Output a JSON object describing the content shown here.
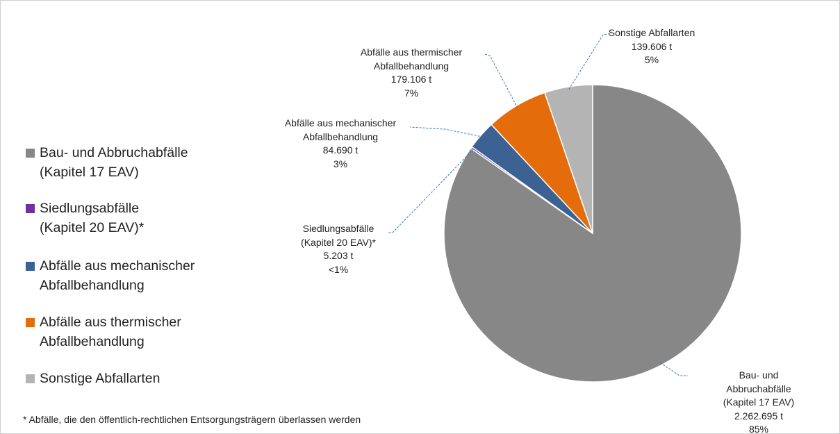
{
  "chart_data": {
    "type": "pie",
    "categories": [
      "Bau- und Abbruchabfälle\n(Kapitel 17 EAV)",
      "Siedlungsabfälle\n(Kapitel 20 EAV)*",
      "Abfälle aus mechanischer\nAbfallbehandlung",
      "Abfälle aus thermischer\nAbfallbehandlung",
      "Sonstige Abfallarten"
    ],
    "values": [
      2262695,
      5203,
      84690,
      179106,
      139606
    ],
    "value_labels": [
      "2.262.695 t",
      "5.203 t",
      "84.690 t",
      "179.106 t",
      "139.606 t"
    ],
    "percent_labels": [
      "85%",
      "<1%",
      "3%",
      "7%",
      "5%"
    ],
    "colors": [
      "#878787",
      "#7030a0",
      "#3b6293",
      "#e46c0a",
      "#b4b4b4"
    ],
    "legend": "left",
    "footnote": "* Abfälle, die den öffentlich-rechtlichen Entsorgungsträgern überlassen werden"
  }
}
